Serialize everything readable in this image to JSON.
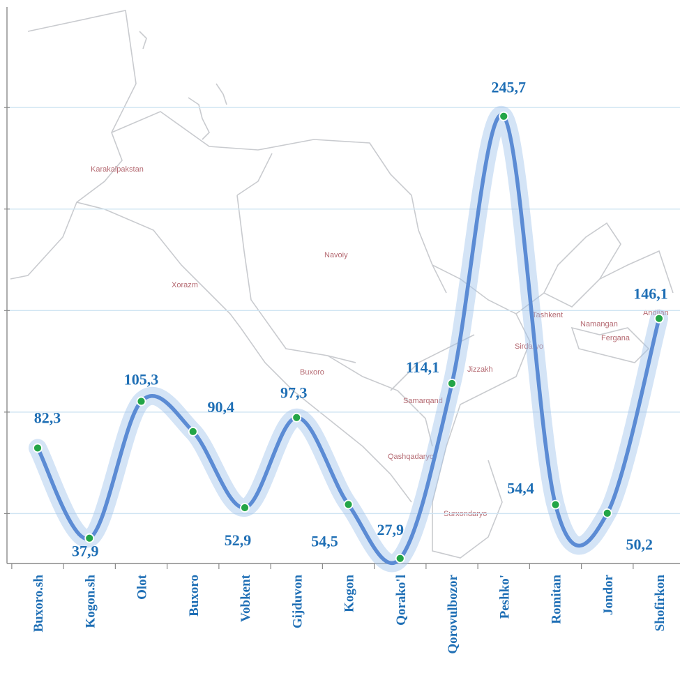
{
  "chart_data": {
    "type": "line",
    "categories": [
      "Buxoro.sh",
      "Kogon.sh",
      "Olot",
      "Buxoro",
      "Vobkent",
      "Gijduvon",
      "Kogon",
      "Qorako'l",
      "Qorovulbozor",
      "Peshko'",
      "Romitan",
      "Jondor",
      "Shofirkon"
    ],
    "series": [
      {
        "values": [
          82.3,
          37.9,
          105.3,
          90.4,
          52.9,
          97.3,
          54.5,
          27.9,
          114.1,
          245.7,
          54.4,
          50.2,
          146.1
        ],
        "labels": [
          "82,3",
          "37,9",
          "105,3",
          "90,4",
          "52,9",
          "97,3",
          "54,5",
          "27,9",
          "114,1",
          "245,7",
          "54,4",
          "50,2",
          "146,1"
        ]
      }
    ],
    "title": "",
    "xlabel": "",
    "ylabel": "",
    "ylim": [
      0,
      270
    ],
    "grid": true,
    "legend": "none",
    "line_color": "#5b8bd4",
    "marker_color": "#23a547",
    "label_color": "#1f6fb5",
    "background_map_labels": [
      "Karakalpakstan",
      "Xorazm",
      "Navoiy",
      "Buxoro",
      "Samarqand",
      "Qashqadaryo",
      "Surxondaryo",
      "Jizzakh",
      "Sirdaryo",
      "Tashkent",
      "Namangan",
      "Fergana",
      "Andijan"
    ]
  }
}
